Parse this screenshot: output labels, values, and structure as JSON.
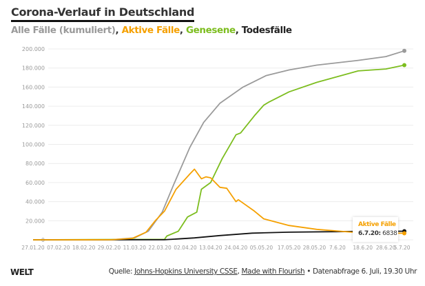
{
  "title": "Corona-Verlauf in Deutschland",
  "subtitle": {
    "parts": [
      {
        "text": "Alle Fälle (kumuliert)",
        "color": "#9a9a9a"
      },
      {
        "text": ", ",
        "color": "#333333"
      },
      {
        "text": "Aktive Fälle",
        "color": "#f5a000"
      },
      {
        "text": ", ",
        "color": "#333333"
      },
      {
        "text": "Genesene",
        "color": "#7cbd1e"
      },
      {
        "text": ", Todesfälle",
        "color": "#222222"
      }
    ]
  },
  "tooltip": {
    "title": "Aktive Fälle",
    "date": "6.7.20:",
    "value": "6838"
  },
  "footer": {
    "logo": "WELT",
    "source_prefix": "Quelle: ",
    "source_link1": "Johns-Hopkins University CSSE",
    "separator": ", ",
    "source_link2": "Made with Flourish",
    "suffix": " • Datenabfrage 6. Juli, 19.30 Uhr"
  },
  "chart_data": {
    "type": "line",
    "xlim": [
      "2020-01-27",
      "2020-07-06"
    ],
    "ylim": [
      0,
      200000
    ],
    "grid": true,
    "yticks": [
      0,
      20000,
      40000,
      60000,
      80000,
      100000,
      120000,
      140000,
      160000,
      180000,
      200000
    ],
    "ytick_labels": [
      "0",
      "20.000",
      "40.000",
      "60.000",
      "80.000",
      "100.000",
      "120.000",
      "140.000",
      "160.000",
      "180.000",
      "200.000"
    ],
    "xticks": [
      "2020-01-27",
      "2020-02-07",
      "2020-02-18",
      "2020-02-29",
      "2020-03-11",
      "2020-03-22",
      "2020-04-02",
      "2020-04-13",
      "2020-04-24",
      "2020-05-05",
      "2020-05-17",
      "2020-05-28",
      "2020-06-07",
      "2020-06-18",
      "2020-06-28",
      "2020-07-05"
    ],
    "xtick_labels": [
      "27.01.20",
      "07.02.20",
      "18.02.20",
      "29.02.20",
      "11.03.20",
      "22.03.20",
      "02.04.20",
      "13.04.20",
      "24.04.20",
      "05.05.20",
      "17.05.20",
      "28.05.20",
      "7.6.20",
      "18.6.20",
      "28.6.20",
      "5.7.20"
    ],
    "series": [
      {
        "name": "Alle Fälle (kumuliert)",
        "color": "#9a9a9a",
        "end_dot": true,
        "points": [
          [
            "2020-01-27",
            0
          ],
          [
            "2020-03-01",
            100
          ],
          [
            "2020-03-11",
            2000
          ],
          [
            "2020-03-17",
            9000
          ],
          [
            "2020-03-23",
            29000
          ],
          [
            "2020-03-28",
            58000
          ],
          [
            "2020-04-04",
            97000
          ],
          [
            "2020-04-10",
            123000
          ],
          [
            "2020-04-17",
            143000
          ],
          [
            "2020-04-27",
            160000
          ],
          [
            "2020-05-07",
            172000
          ],
          [
            "2020-05-17",
            178000
          ],
          [
            "2020-05-29",
            183000
          ],
          [
            "2020-06-16",
            188000
          ],
          [
            "2020-06-28",
            192000
          ],
          [
            "2020-07-06",
            198000
          ]
        ]
      },
      {
        "name": "Genesene",
        "color": "#7cbd1e",
        "end_dot": true,
        "points": [
          [
            "2020-01-27",
            0
          ],
          [
            "2020-03-24",
            500
          ],
          [
            "2020-03-25",
            4000
          ],
          [
            "2020-03-30",
            9000
          ],
          [
            "2020-04-03",
            24000
          ],
          [
            "2020-04-07",
            29000
          ],
          [
            "2020-04-09",
            53000
          ],
          [
            "2020-04-13",
            60000
          ],
          [
            "2020-04-18",
            85000
          ],
          [
            "2020-04-24",
            110000
          ],
          [
            "2020-04-26",
            112000
          ],
          [
            "2020-05-02",
            130000
          ],
          [
            "2020-05-06",
            141000
          ],
          [
            "2020-05-08",
            144000
          ],
          [
            "2020-05-17",
            155000
          ],
          [
            "2020-05-29",
            165000
          ],
          [
            "2020-06-16",
            177000
          ],
          [
            "2020-06-28",
            179000
          ],
          [
            "2020-07-06",
            183000
          ]
        ]
      },
      {
        "name": "Todesfälle",
        "color": "#111111",
        "end_dot": true,
        "points": [
          [
            "2020-01-27",
            0
          ],
          [
            "2020-03-24",
            100
          ],
          [
            "2020-04-06",
            2000
          ],
          [
            "2020-04-17",
            4500
          ],
          [
            "2020-05-01",
            7000
          ],
          [
            "2020-05-17",
            8000
          ],
          [
            "2020-06-16",
            8800
          ],
          [
            "2020-07-06",
            9000
          ]
        ]
      },
      {
        "name": "Aktive Fälle",
        "color": "#f5a000",
        "end_dot": true,
        "points": [
          [
            "2020-01-27",
            0
          ],
          [
            "2020-03-01",
            100
          ],
          [
            "2020-03-10",
            1500
          ],
          [
            "2020-03-16",
            8000
          ],
          [
            "2020-03-20",
            20000
          ],
          [
            "2020-03-24",
            30000
          ],
          [
            "2020-03-29",
            53000
          ],
          [
            "2020-04-04",
            69000
          ],
          [
            "2020-04-06",
            74000
          ],
          [
            "2020-04-09",
            64000
          ],
          [
            "2020-04-11",
            66000
          ],
          [
            "2020-04-13",
            65000
          ],
          [
            "2020-04-17",
            55000
          ],
          [
            "2020-04-20",
            54000
          ],
          [
            "2020-04-24",
            40000
          ],
          [
            "2020-04-25",
            42000
          ],
          [
            "2020-05-02",
            30000
          ],
          [
            "2020-05-06",
            22000
          ],
          [
            "2020-05-17",
            15000
          ],
          [
            "2020-05-29",
            11000
          ],
          [
            "2020-06-16",
            7500
          ],
          [
            "2020-07-06",
            6838
          ]
        ]
      }
    ]
  }
}
